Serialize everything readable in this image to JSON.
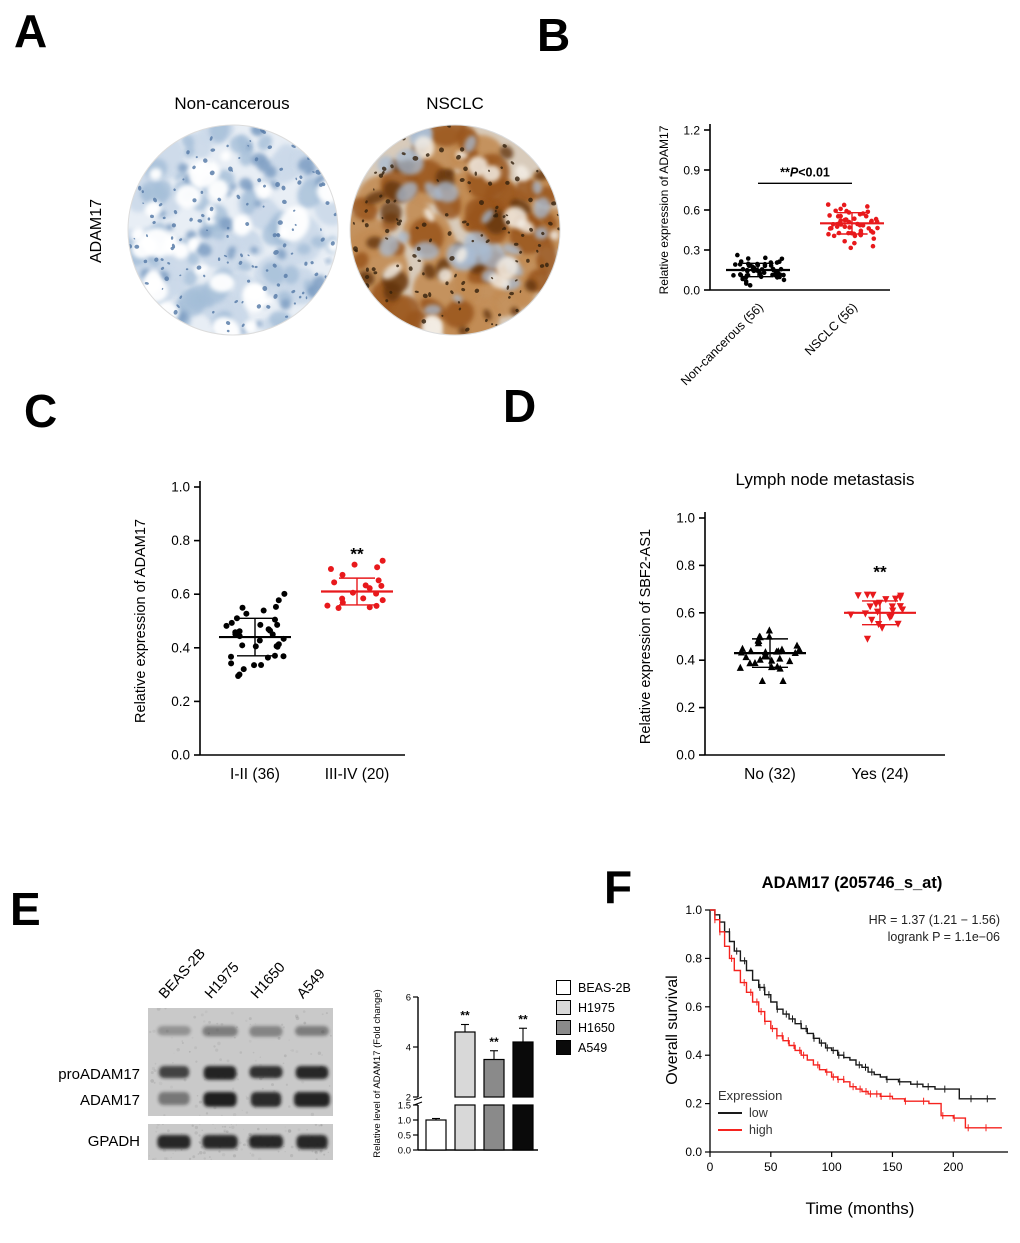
{
  "panels": {
    "A": {
      "label": "A",
      "row_label": "ADAM17",
      "images": [
        {
          "label": "Non-cancerous",
          "stain": "hematoxylin blue, ADAM17-negative",
          "palette": [
            "#e8eef5",
            "#cbd9e9",
            "#a4bed8",
            "#7e9ec3",
            "#ffffff",
            "#5a7ea9"
          ]
        },
        {
          "label": "NSCLC",
          "stain": "DAB brown, ADAM17-positive",
          "palette": [
            "#d8cbbb",
            "#c28c55",
            "#99551c",
            "#63350f",
            "#a9bcd3",
            "#f3ede4",
            "#33200c"
          ]
        }
      ]
    },
    "B": {
      "label": "B"
    },
    "C": {
      "label": "C"
    },
    "D": {
      "label": "D"
    },
    "E": {
      "label": "E"
    },
    "F": {
      "label": "F"
    }
  },
  "chart_data": [
    {
      "id": "panel-B",
      "type": "scatter",
      "ylabel": "Relative expression of ADAM17",
      "ylim": [
        0,
        1.2
      ],
      "yticks": [
        0,
        0.3,
        0.6,
        0.9,
        1.2
      ],
      "groups": [
        {
          "label": "Non-cancerous (56)",
          "n": 56,
          "mean": 0.15,
          "sd": 0.05,
          "color": "#000000",
          "marker": "circle"
        },
        {
          "label": "NSCLC (56)",
          "n": 56,
          "mean": 0.5,
          "sd": 0.08,
          "color": "#e8191c",
          "marker": "circle"
        }
      ],
      "significance": {
        "text": "**P<0.01",
        "line_y": 0.8
      }
    },
    {
      "id": "panel-C",
      "type": "scatter",
      "ylabel": "Relative expression of ADAM17",
      "ylim": [
        0,
        1.0
      ],
      "yticks": [
        0,
        0.2,
        0.4,
        0.6,
        0.8,
        1.0
      ],
      "groups": [
        {
          "label": "I-II (36)",
          "n": 36,
          "mean": 0.44,
          "sd": 0.07,
          "color": "#000000",
          "marker": "circle"
        },
        {
          "label": "III-IV (20)",
          "n": 20,
          "mean": 0.61,
          "sd": 0.05,
          "color": "#e8191c",
          "marker": "circle",
          "significance": "**",
          "sig_y": 0.73
        }
      ]
    },
    {
      "id": "panel-D",
      "type": "scatter",
      "title": "Lymph node metastasis",
      "ylabel": "Relative expression of SBF2-AS1",
      "ylim": [
        0,
        1.0
      ],
      "yticks": [
        0,
        0.2,
        0.4,
        0.6,
        0.8,
        1.0
      ],
      "groups": [
        {
          "label": "No (32)",
          "n": 32,
          "mean": 0.43,
          "sd": 0.06,
          "color": "#000000",
          "marker": "triangle-up"
        },
        {
          "label": "Yes (24)",
          "n": 24,
          "mean": 0.6,
          "sd": 0.05,
          "color": "#e8191c",
          "marker": "triangle-down",
          "significance": "**",
          "sig_y": 0.75
        }
      ]
    },
    {
      "id": "panel-E-bar",
      "type": "bar",
      "ylabel": "Relative level of ADAM17 (Fold change)",
      "categories": [
        "BEAS-2B",
        "H1975",
        "H1650",
        "A549"
      ],
      "values": [
        1.0,
        4.6,
        3.5,
        4.2
      ],
      "errors": [
        0.05,
        0.3,
        0.35,
        0.55
      ],
      "colors": [
        "#ffffff",
        "#d8d8d8",
        "#8a8a8a",
        "#0a0a0a"
      ],
      "significance": [
        "",
        "**",
        "**",
        "**"
      ],
      "axis_break": {
        "lower": [
          0,
          1.5
        ],
        "lower_ticks": [
          0,
          0.5,
          1.0,
          1.5
        ],
        "upper": [
          2,
          6
        ],
        "upper_ticks": [
          2,
          4,
          6
        ]
      }
    },
    {
      "id": "panel-E-blot",
      "type": "table",
      "lanes": [
        "BEAS-2B",
        "H1975",
        "H1650",
        "A549"
      ],
      "rows": [
        {
          "name": "proADAM17",
          "intensities": [
            0.75,
            0.92,
            0.85,
            0.9
          ]
        },
        {
          "name": "ADAM17",
          "intensities": [
            0.45,
            0.95,
            0.88,
            0.92
          ]
        },
        {
          "name": "GPADH",
          "intensities": [
            0.9,
            0.9,
            0.9,
            0.9
          ]
        }
      ]
    },
    {
      "id": "panel-F",
      "type": "line",
      "title": "ADAM17 (205746_s_at)",
      "xlabel": "Time (months)",
      "ylabel": "Overall survival",
      "xlim": [
        0,
        245
      ],
      "xticks": [
        0,
        50,
        100,
        150,
        200
      ],
      "ylim": [
        0,
        1.0
      ],
      "yticks": [
        0,
        0.2,
        0.4,
        0.6,
        0.8,
        1.0
      ],
      "annotations": [
        "HR = 1.37 (1.21 − 1.56)",
        "logrank P = 1.1e−06"
      ],
      "legend_title": "Expression",
      "series": [
        {
          "name": "low",
          "color": "#1a1a1a",
          "points": [
            [
              0,
              1.0
            ],
            [
              4,
              0.98
            ],
            [
              8,
              0.95
            ],
            [
              12,
              0.91
            ],
            [
              16,
              0.87
            ],
            [
              20,
              0.83
            ],
            [
              25,
              0.79
            ],
            [
              30,
              0.75
            ],
            [
              35,
              0.71
            ],
            [
              40,
              0.68
            ],
            [
              45,
              0.65
            ],
            [
              50,
              0.62
            ],
            [
              55,
              0.59
            ],
            [
              60,
              0.57
            ],
            [
              65,
              0.55
            ],
            [
              70,
              0.53
            ],
            [
              75,
              0.51
            ],
            [
              80,
              0.49
            ],
            [
              85,
              0.47
            ],
            [
              90,
              0.45
            ],
            [
              95,
              0.43
            ],
            [
              100,
              0.42
            ],
            [
              105,
              0.4
            ],
            [
              110,
              0.39
            ],
            [
              115,
              0.38
            ],
            [
              120,
              0.36
            ],
            [
              125,
              0.35
            ],
            [
              130,
              0.33
            ],
            [
              135,
              0.32
            ],
            [
              140,
              0.31
            ],
            [
              145,
              0.3
            ],
            [
              155,
              0.29
            ],
            [
              165,
              0.28
            ],
            [
              175,
              0.27
            ],
            [
              185,
              0.26
            ],
            [
              195,
              0.26
            ],
            [
              205,
              0.22
            ],
            [
              215,
              0.22
            ],
            [
              235,
              0.22
            ]
          ]
        },
        {
          "name": "high",
          "color": "#f5231f",
          "points": [
            [
              0,
              1.0
            ],
            [
              4,
              0.96
            ],
            [
              8,
              0.91
            ],
            [
              12,
              0.85
            ],
            [
              16,
              0.8
            ],
            [
              20,
              0.75
            ],
            [
              25,
              0.7
            ],
            [
              30,
              0.66
            ],
            [
              35,
              0.62
            ],
            [
              40,
              0.58
            ],
            [
              45,
              0.54
            ],
            [
              50,
              0.51
            ],
            [
              55,
              0.48
            ],
            [
              60,
              0.46
            ],
            [
              65,
              0.44
            ],
            [
              70,
              0.42
            ],
            [
              75,
              0.4
            ],
            [
              80,
              0.38
            ],
            [
              85,
              0.36
            ],
            [
              90,
              0.34
            ],
            [
              95,
              0.33
            ],
            [
              100,
              0.31
            ],
            [
              105,
              0.3
            ],
            [
              110,
              0.29
            ],
            [
              115,
              0.27
            ],
            [
              120,
              0.26
            ],
            [
              125,
              0.25
            ],
            [
              130,
              0.24
            ],
            [
              140,
              0.23
            ],
            [
              150,
              0.22
            ],
            [
              160,
              0.21
            ],
            [
              170,
              0.21
            ],
            [
              180,
              0.2
            ],
            [
              190,
              0.15
            ],
            [
              200,
              0.14
            ],
            [
              210,
              0.1
            ],
            [
              225,
              0.1
            ],
            [
              240,
              0.1
            ]
          ]
        }
      ]
    }
  ]
}
